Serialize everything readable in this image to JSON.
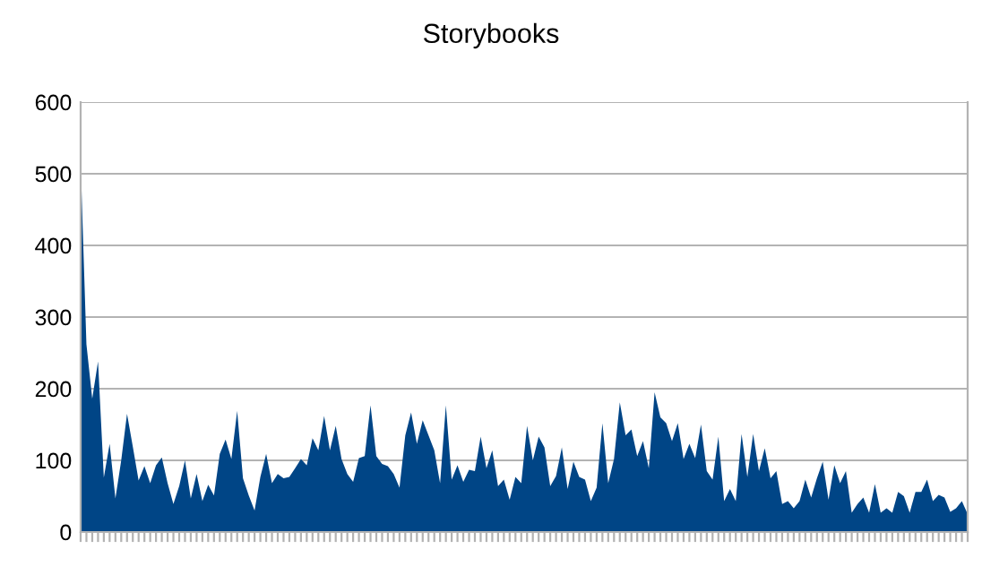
{
  "chart_data": {
    "type": "area",
    "title": "Storybooks",
    "categories": [
      null,
      null,
      null,
      null,
      null,
      null,
      null,
      null,
      null,
      null,
      null,
      null,
      null,
      null,
      null,
      null,
      null,
      null,
      null,
      null,
      null,
      null,
      null,
      null,
      null,
      null,
      null,
      null,
      null,
      null,
      null,
      null,
      null,
      null,
      null,
      null,
      null,
      null,
      null,
      null,
      null,
      null,
      null,
      null,
      null,
      null,
      null,
      null,
      null,
      null,
      null,
      null,
      null,
      null,
      null,
      null,
      null,
      null,
      null,
      null,
      null,
      null,
      null,
      null,
      null,
      null,
      null,
      null,
      null,
      null,
      null,
      null,
      null,
      null,
      null,
      null,
      null,
      null,
      null,
      null,
      null,
      null,
      null,
      null,
      null,
      null,
      null,
      null,
      null,
      null,
      null,
      null,
      null,
      null,
      null,
      null,
      null,
      null,
      null,
      null,
      null,
      null,
      null,
      null,
      null,
      null,
      null,
      null,
      null,
      null,
      null,
      null,
      null,
      null,
      null,
      null,
      null,
      null,
      null,
      null,
      null,
      null,
      null,
      null,
      null,
      null,
      null,
      null,
      null,
      null,
      null,
      null,
      null,
      null,
      null,
      null,
      null,
      null,
      null,
      null,
      null,
      null,
      null,
      null,
      null,
      null,
      null,
      null,
      null,
      null,
      null,
      null,
      null,
      null
    ],
    "series": [
      {
        "color": "#004586",
        "values": [
          516,
          262,
          186,
          238,
          76,
          123,
          47,
          100,
          165,
          119,
          72,
          92,
          68,
          93,
          104,
          68,
          39,
          64,
          100,
          47,
          81,
          43,
          66,
          51,
          109,
          129,
          102,
          169,
          75,
          51,
          30,
          77,
          109,
          68,
          81,
          75,
          77,
          89,
          102,
          93,
          131,
          114,
          162,
          114,
          148,
          102,
          81,
          70,
          103,
          106,
          177,
          106,
          95,
          92,
          81,
          62,
          135,
          167,
          123,
          156,
          135,
          114,
          68,
          177,
          73,
          93,
          70,
          87,
          85,
          133,
          89,
          114,
          64,
          73,
          45,
          77,
          68,
          148,
          100,
          133,
          118,
          64,
          78,
          118,
          60,
          98,
          77,
          73,
          43,
          62,
          152,
          68,
          102,
          181,
          135,
          143,
          106,
          127,
          89,
          195,
          160,
          152,
          127,
          152,
          102,
          123,
          103,
          150,
          85,
          73,
          133,
          43,
          60,
          43,
          137,
          77,
          137,
          85,
          117,
          75,
          85,
          39,
          43,
          33,
          43,
          73,
          48,
          75,
          98,
          45,
          93,
          68,
          85,
          27,
          39,
          48,
          27,
          67,
          27,
          33,
          27,
          56,
          50,
          27,
          56,
          56,
          73,
          43,
          52,
          48,
          28,
          33,
          43,
          25
        ]
      }
    ],
    "ylim": [
      0,
      600
    ],
    "yticks": [
      0,
      100,
      200,
      300,
      400,
      500,
      600
    ],
    "grid": "y"
  }
}
